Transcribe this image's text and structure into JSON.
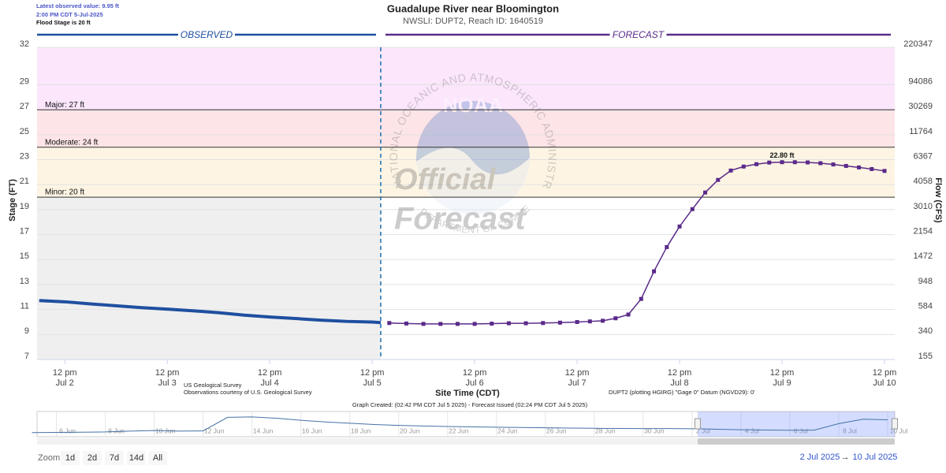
{
  "header": {
    "latest": "Latest observed value: 9.95 ft",
    "latest_time": "2:00 PM CDT 5-Jul-2025",
    "flood_stage": "Flood Stage is 20 ft"
  },
  "chart_data": {
    "type": "line",
    "title": "Guadalupe River near Bloomington",
    "subtitle": "NWSLI: DUPT2, Reach ID: 1640519",
    "observed_label": "OBSERVED",
    "forecast_label": "FORECAST",
    "ylabel": "Stage (FT)",
    "y2label": "Flow (CFS)",
    "xlabel": "Site Time (CDT)",
    "ylim": [
      7,
      32
    ],
    "yticks": [
      7,
      9,
      11,
      13,
      15,
      17,
      19,
      21,
      23,
      25,
      27,
      29,
      32
    ],
    "flow_ticks": [
      155,
      340,
      584,
      948,
      1472,
      2154,
      3010,
      4058,
      6367,
      11764,
      30269,
      94086,
      220347
    ],
    "grid": true,
    "xlim": [
      "2025-07-02T05:30",
      "2025-07-10T14:24"
    ],
    "xticks": [
      {
        "value": "2025-07-02T12:00",
        "label": [
          "12 pm",
          "Jul 2"
        ]
      },
      {
        "value": "2025-07-03T12:00",
        "label": [
          "12 pm",
          "Jul 3"
        ]
      },
      {
        "value": "2025-07-04T12:00",
        "label": [
          "12 pm",
          "Jul 4"
        ]
      },
      {
        "value": "2025-07-05T12:00",
        "label": [
          "12 pm",
          "Jul 5"
        ]
      },
      {
        "value": "2025-07-06T12:00",
        "label": [
          "12 pm",
          "Jul 6"
        ]
      },
      {
        "value": "2025-07-07T12:00",
        "label": [
          "12 pm",
          "Jul 7"
        ]
      },
      {
        "value": "2025-07-08T12:00",
        "label": [
          "12 pm",
          "Jul 8"
        ]
      },
      {
        "value": "2025-07-09T12:00",
        "label": [
          "12 pm",
          "Jul 9"
        ]
      },
      {
        "value": "2025-07-10T12:00",
        "label": [
          "12 pm",
          "Jul 10"
        ]
      }
    ],
    "flood_levels": [
      {
        "label": "Major: 27 ft",
        "value": 27,
        "color": "#fbe6fb"
      },
      {
        "label": "Moderate: 24 ft",
        "value": 24,
        "color": "#fde4e7"
      },
      {
        "label": "Minor: 20 ft",
        "value": 20,
        "color": "#fdf4e3"
      }
    ],
    "observed_band_color": "#efefef",
    "series": [
      {
        "color": "#1f4fa0",
        "x": [
          "2025-07-02T06:00",
          "2025-07-02T12:00",
          "2025-07-02T18:00",
          "2025-07-03T00:00",
          "2025-07-03T06:00",
          "2025-07-03T12:00",
          "2025-07-03T18:00",
          "2025-07-04T00:00",
          "2025-07-04T06:00",
          "2025-07-04T12:00",
          "2025-07-04T18:00",
          "2025-07-05T00:00",
          "2025-07-05T06:00",
          "2025-07-05T12:00",
          "2025-07-05T14:00"
        ],
        "values": [
          11.72,
          11.62,
          11.45,
          11.3,
          11.15,
          11.03,
          10.9,
          10.75,
          10.55,
          10.4,
          10.28,
          10.15,
          10.05,
          10.0,
          9.95
        ]
      },
      {
        "color": "#5a2a8a",
        "x": [
          "2025-07-05T16:00",
          "2025-07-05T20:00",
          "2025-07-06T00:00",
          "2025-07-06T04:00",
          "2025-07-06T08:00",
          "2025-07-06T12:00",
          "2025-07-06T16:00",
          "2025-07-06T20:00",
          "2025-07-07T00:00",
          "2025-07-07T04:00",
          "2025-07-07T08:00",
          "2025-07-07T12:00",
          "2025-07-07T15:00",
          "2025-07-07T18:00",
          "2025-07-07T21:00",
          "2025-07-08T00:00",
          "2025-07-08T03:00",
          "2025-07-08T06:00",
          "2025-07-08T09:00",
          "2025-07-08T12:00",
          "2025-07-08T15:00",
          "2025-07-08T18:00",
          "2025-07-08T21:00",
          "2025-07-09T00:00",
          "2025-07-09T03:00",
          "2025-07-09T06:00",
          "2025-07-09T09:00",
          "2025-07-09T12:00",
          "2025-07-09T15:00",
          "2025-07-09T18:00",
          "2025-07-09T21:00",
          "2025-07-10T00:00",
          "2025-07-10T03:00",
          "2025-07-10T06:00",
          "2025-07-10T09:00",
          "2025-07-10T12:00"
        ],
        "values": [
          9.92,
          9.88,
          9.85,
          9.85,
          9.85,
          9.85,
          9.87,
          9.9,
          9.9,
          9.92,
          9.95,
          10.0,
          10.05,
          10.1,
          10.3,
          10.6,
          11.85,
          14.06,
          16.0,
          17.65,
          19.04,
          20.37,
          21.38,
          22.13,
          22.45,
          22.64,
          22.77,
          22.8,
          22.8,
          22.78,
          22.72,
          22.62,
          22.5,
          22.38,
          22.25,
          22.1
        ],
        "value_labels": [
          null,
          null,
          null,
          null,
          null,
          null,
          null,
          null,
          null,
          null,
          null,
          null,
          null,
          null,
          null,
          null,
          null,
          null,
          null,
          null,
          null,
          null,
          null,
          null,
          null,
          null,
          null,
          "22.80 ft",
          null,
          null,
          null,
          null,
          null,
          null,
          null,
          null
        ]
      }
    ],
    "notes": {
      "source": "US Geological Survey",
      "courtesy": "Observations courtesy of U.S. Geological Survey",
      "datum": "DUPT2 (plotting HGIRG) \"Gage 0\" Datum (NGVD29): 0'",
      "created": "Graph Created: (02:42 PM CDT Jul 5 2025) - Forecast Issued (02:24 PM CDT Jul 5 2025)"
    }
  },
  "watermark": {
    "agency": "NATIONAL OCEANIC AND ATMOSPHERIC ADMINISTRATION",
    "logo": "NOAA",
    "department": "DEPARTMENT OF COMMERCE",
    "line1": "Official",
    "line2": "Forecast"
  },
  "navigator": {
    "color": "#4572a7",
    "xlim": [
      "2025-06-05T05:00",
      "2025-07-10T07:00"
    ],
    "ylim": [
      4,
      30
    ],
    "x": [
      "2025-06-05T00:00",
      "2025-06-06T00:00",
      "2025-06-07T00:00",
      "2025-06-08T00:00",
      "2025-06-09T00:00",
      "2025-06-10T00:00",
      "2025-06-11T00:00",
      "2025-06-12T00:00",
      "2025-06-13T00:00",
      "2025-06-14T00:00",
      "2025-06-15T00:00",
      "2025-06-16T00:00",
      "2025-06-17T00:00",
      "2025-06-18T00:00",
      "2025-06-19T00:00",
      "2025-06-20T00:00",
      "2025-06-21T00:00",
      "2025-06-22T00:00",
      "2025-06-23T00:00",
      "2025-06-24T00:00",
      "2025-06-25T00:00",
      "2025-06-26T00:00",
      "2025-06-27T00:00",
      "2025-06-28T00:00",
      "2025-06-29T00:00",
      "2025-06-30T00:00",
      "2025-07-01T00:00",
      "2025-07-02T00:00",
      "2025-07-03T00:00",
      "2025-07-04T00:00",
      "2025-07-05T00:00",
      "2025-07-06T00:00",
      "2025-07-07T00:00",
      "2025-07-08T00:00",
      "2025-07-09T00:00",
      "2025-07-10T00:00"
    ],
    "values": [
      7.0,
      7.2,
      7.5,
      7.8,
      8.8,
      9.5,
      8.8,
      9.0,
      25.0,
      25.5,
      24.0,
      21.5,
      19.5,
      18.0,
      16.5,
      15.5,
      14.8,
      14.2,
      13.8,
      13.4,
      13.0,
      12.7,
      12.4,
      12.1,
      11.9,
      11.8,
      11.8,
      11.6,
      11.0,
      10.4,
      10.0,
      9.85,
      9.95,
      17.6,
      22.8,
      22.1
    ],
    "xticks": [
      {
        "value": "2025-06-06T00:00",
        "label": "6 Jun"
      },
      {
        "value": "2025-06-08T00:00",
        "label": "8 Jun"
      },
      {
        "value": "2025-06-10T00:00",
        "label": "10 Jun"
      },
      {
        "value": "2025-06-12T00:00",
        "label": "12 Jun"
      },
      {
        "value": "2025-06-14T00:00",
        "label": "14 Jun"
      },
      {
        "value": "2025-06-16T00:00",
        "label": "16 Jun"
      },
      {
        "value": "2025-06-18T00:00",
        "label": "18 Jun"
      },
      {
        "value": "2025-06-20T00:00",
        "label": "20 Jun"
      },
      {
        "value": "2025-06-22T00:00",
        "label": "22 Jun"
      },
      {
        "value": "2025-06-24T00:00",
        "label": "24 Jun"
      },
      {
        "value": "2025-06-26T00:00",
        "label": "26 Jun"
      },
      {
        "value": "2025-06-28T00:00",
        "label": "28 Jun"
      },
      {
        "value": "2025-06-30T00:00",
        "label": "30 Jun"
      },
      {
        "value": "2025-07-02T00:00",
        "label": "2 Jul"
      },
      {
        "value": "2025-07-04T00:00",
        "label": "4 Jul"
      },
      {
        "value": "2025-07-06T00:00",
        "label": "6 Jul"
      },
      {
        "value": "2025-07-08T00:00",
        "label": "8 Jul"
      },
      {
        "value": "2025-07-10T00:00",
        "label": "10 Jul"
      }
    ]
  },
  "controls": {
    "zoom_label": "Zoom",
    "buttons": [
      "1d",
      "2d",
      "7d",
      "14d",
      "All"
    ],
    "range_from": "2 Jul 2025",
    "range_arrow": "→",
    "range_to": "10 Jul 2025"
  }
}
